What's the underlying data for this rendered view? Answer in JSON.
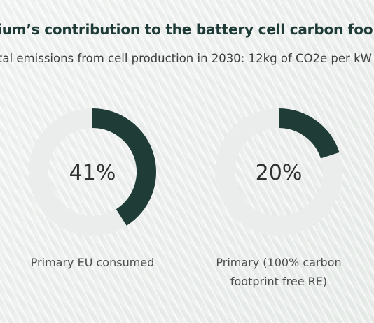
{
  "chart_data": [
    {
      "type": "pie",
      "title": "nium’s contribution to the battery cell carbon foo",
      "subtitle": "tal emissions from cell production in 2030: 12kg of CO2e per kW",
      "charts": [
        {
          "value": 41,
          "value_label": "41%",
          "label": "Primary EU consumed"
        },
        {
          "value": 20,
          "value_label": "20%",
          "label": "Primary (100% carbon footprint free RE)"
        }
      ],
      "colors": {
        "filled": "#1f3c37",
        "track": "#eaedeb"
      }
    }
  ]
}
